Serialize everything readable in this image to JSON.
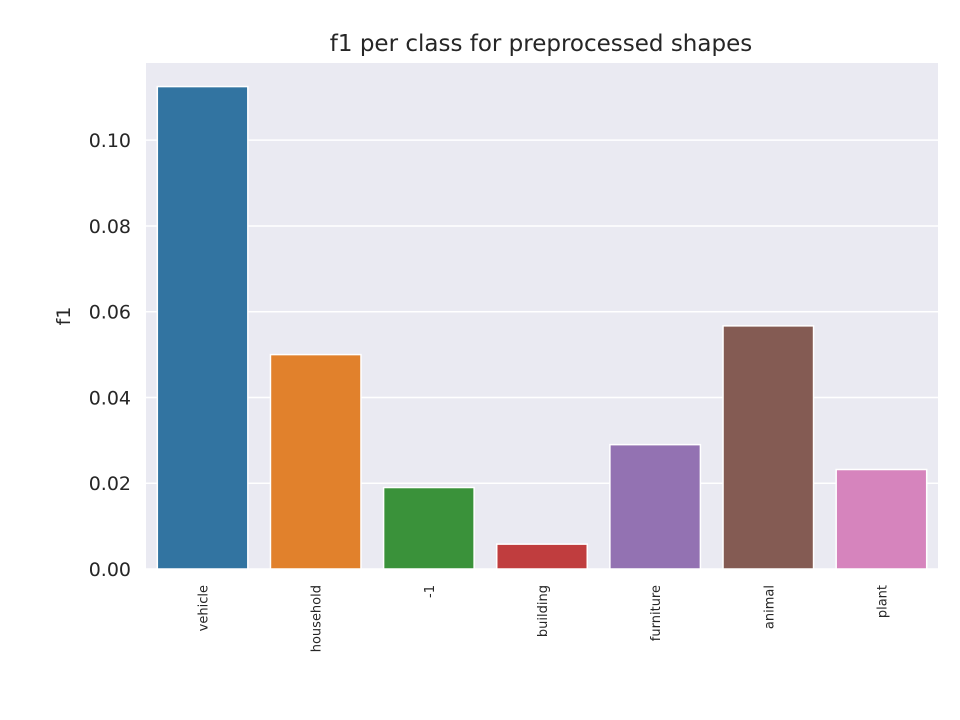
{
  "chart_data": {
    "type": "bar",
    "title": "f1 per class for preprocessed shapes",
    "xlabel": "",
    "ylabel": "f1",
    "ylim": [
      0,
      0.118
    ],
    "yticks": [
      "0.00",
      "0.02",
      "0.04",
      "0.06",
      "0.08",
      "0.10"
    ],
    "categories": [
      "vehicle",
      "household",
      "-1",
      "building",
      "furniture",
      "animal",
      "plant"
    ],
    "values": [
      0.1125,
      0.05,
      0.019,
      0.0058,
      0.029,
      0.0567,
      0.0232
    ],
    "colors": [
      "#3274a1",
      "#e1812c",
      "#3a923a",
      "#c03d3e",
      "#9372b2",
      "#845b53",
      "#d684bd"
    ],
    "background": "#eaeaf2",
    "grid": true,
    "legend": "none"
  }
}
